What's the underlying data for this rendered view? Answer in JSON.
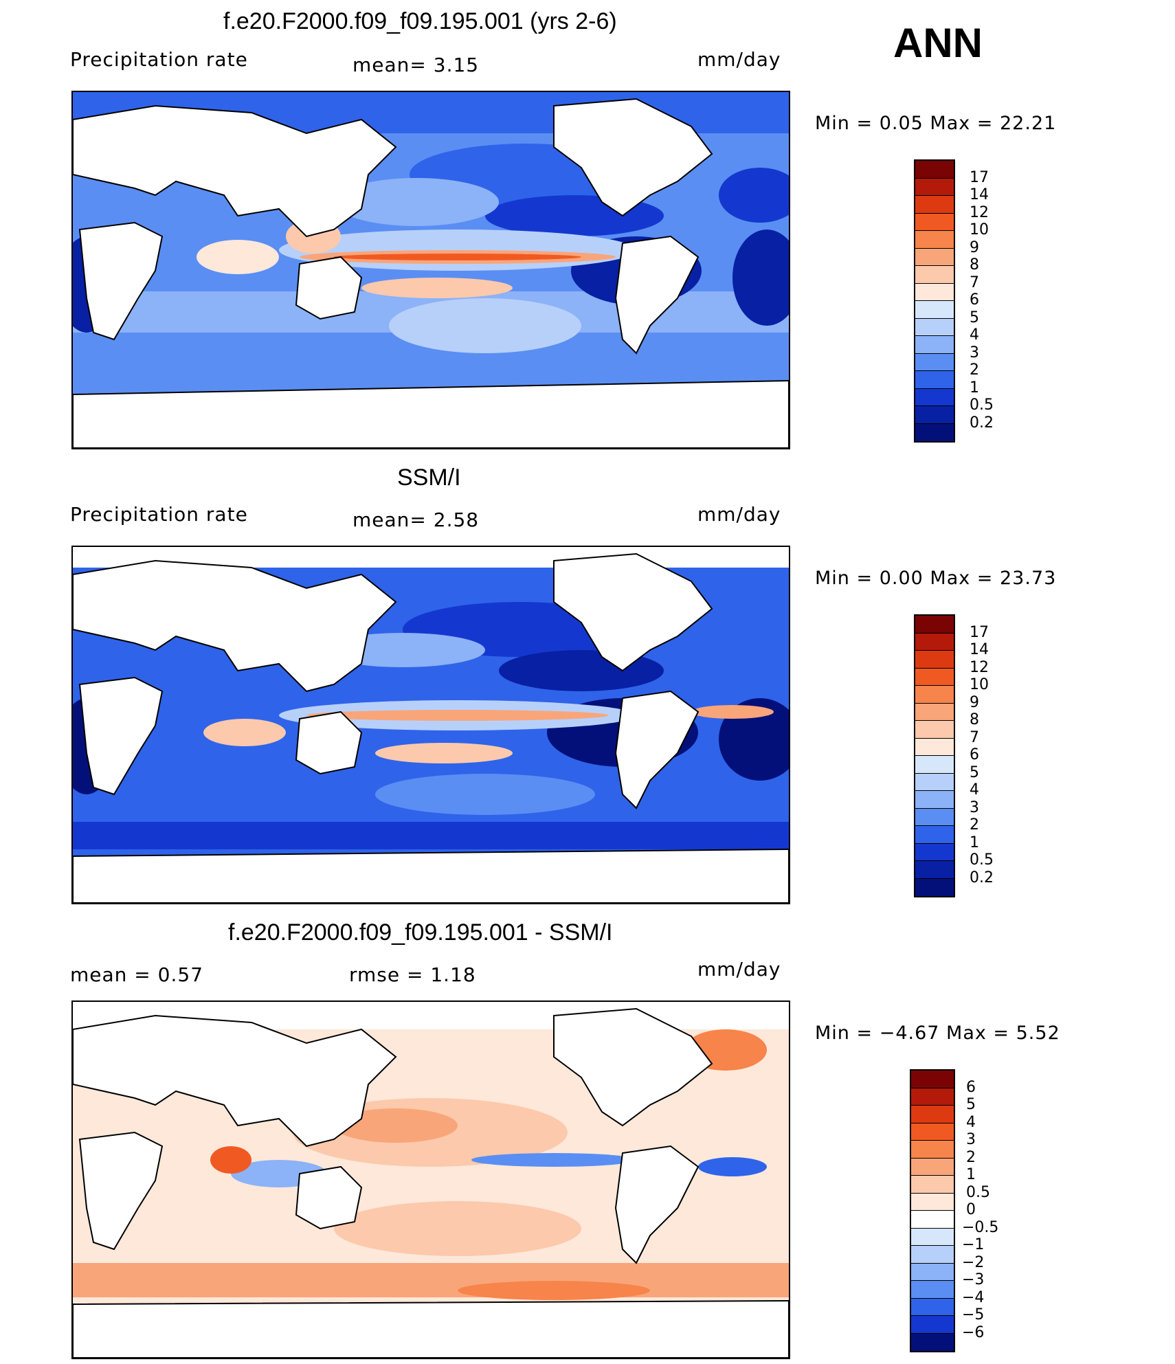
{
  "season_label": "ANN",
  "panels": [
    {
      "title": "f.e20.F2000.f09_f09.195.001 (yrs 2-6)",
      "left_label": "Precipitation  rate",
      "center_label": "mean=    3.15",
      "units": "mm/day",
      "minmax": "Min  =     0.05  Max  =    22.21",
      "scale_labels": [
        "17",
        "14",
        "12",
        "10",
        "9",
        "8",
        "7",
        "6",
        "5",
        "4",
        "3",
        "2",
        "1",
        "0.5",
        "0.2"
      ],
      "colors": [
        "#7a0403",
        "#b41a0a",
        "#dd3a12",
        "#f05a22",
        "#f7844a",
        "#f9a57a",
        "#fcc9ac",
        "#fde8da",
        "#d7e7fb",
        "#b7d0fa",
        "#8cb2f7",
        "#5a8ef3",
        "#2f63ea",
        "#1438cf",
        "#0820a4",
        "#04107a"
      ],
      "map_style": "model"
    },
    {
      "title": "SSM/I",
      "left_label": "Precipitation  rate",
      "center_label": "mean=    2.58",
      "units": "mm/day",
      "minmax": "Min  =     0.00  Max  =    23.73",
      "scale_labels": [
        "17",
        "14",
        "12",
        "10",
        "9",
        "8",
        "7",
        "6",
        "5",
        "4",
        "3",
        "2",
        "1",
        "0.5",
        "0.2"
      ],
      "colors": [
        "#7a0403",
        "#b41a0a",
        "#dd3a12",
        "#f05a22",
        "#f7844a",
        "#f9a57a",
        "#fcc9ac",
        "#fde8da",
        "#d7e7fb",
        "#b7d0fa",
        "#8cb2f7",
        "#5a8ef3",
        "#2f63ea",
        "#1438cf",
        "#0820a4",
        "#04107a"
      ],
      "map_style": "obs"
    },
    {
      "title": "f.e20.F2000.f09_f09.195.001 - SSM/I",
      "left_label": "mean  =     0.57",
      "center_label": "rmse  =     1.18",
      "units": "mm/day",
      "minmax": "Min  =   −4.67  Max  =     5.52",
      "scale_labels": [
        "6",
        "5",
        "4",
        "3",
        "2",
        "1",
        "0.5",
        "0",
        "−0.5",
        "−1",
        "−2",
        "−3",
        "−4",
        "−5",
        "−6"
      ],
      "colors": [
        "#7a0403",
        "#b41a0a",
        "#dd3a12",
        "#f05a22",
        "#f7844a",
        "#f9a57a",
        "#fcc9ac",
        "#fde8da",
        "#ffffff",
        "#d7e7fb",
        "#b7d0fa",
        "#8cb2f7",
        "#5a8ef3",
        "#2f63ea",
        "#1438cf",
        "#04107a"
      ],
      "map_style": "diff"
    }
  ]
}
